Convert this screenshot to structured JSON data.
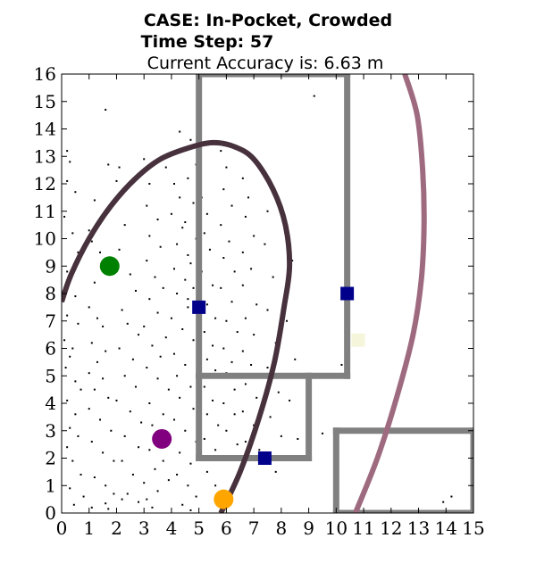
{
  "chart_data": {
    "type": "scatter",
    "title_lines": [
      "CASE: In-Pocket, Crowded",
      "Time Step: 57",
      "Current Accuracy is: 6.63 m"
    ],
    "xlabel": "",
    "ylabel": "",
    "xlim": [
      0,
      15
    ],
    "ylim": [
      0,
      16
    ],
    "xticks": [
      0,
      1,
      2,
      3,
      4,
      5,
      6,
      7,
      8,
      9,
      10,
      11,
      12,
      13,
      14,
      15
    ],
    "yticks": [
      0,
      1,
      2,
      3,
      4,
      5,
      6,
      7,
      8,
      9,
      10,
      11,
      12,
      13,
      14,
      15,
      16
    ],
    "grid": false,
    "legend": "none",
    "walls": [
      {
        "points": [
          [
            5,
            5
          ],
          [
            5,
            16
          ]
        ],
        "color": "#808080"
      },
      {
        "points": [
          [
            5,
            16
          ],
          [
            10.4,
            16
          ]
        ],
        "color": "#808080"
      },
      {
        "points": [
          [
            10.4,
            16
          ],
          [
            10.4,
            5
          ]
        ],
        "color": "#808080"
      },
      {
        "points": [
          [
            10.4,
            5
          ],
          [
            5,
            5
          ]
        ],
        "color": "#808080"
      },
      {
        "points": [
          [
            5,
            5
          ],
          [
            5,
            2
          ]
        ],
        "color": "#808080"
      },
      {
        "points": [
          [
            5,
            2
          ],
          [
            9,
            2
          ]
        ],
        "color": "#808080"
      },
      {
        "points": [
          [
            9,
            2
          ],
          [
            9,
            5
          ]
        ],
        "color": "#808080"
      },
      {
        "points": [
          [
            10,
            0
          ],
          [
            10,
            3
          ]
        ],
        "color": "#808080"
      },
      {
        "points": [
          [
            10,
            3
          ],
          [
            15,
            3
          ]
        ],
        "color": "#808080"
      },
      {
        "points": [
          [
            15,
            3
          ],
          [
            15,
            0
          ]
        ],
        "color": "#808080"
      },
      {
        "points": [
          [
            10,
            0
          ],
          [
            15,
            0
          ]
        ],
        "color": "#808080"
      }
    ],
    "beacons": [
      {
        "x": 5.0,
        "y": 7.5,
        "color": "#00008b"
      },
      {
        "x": 10.4,
        "y": 8.0,
        "color": "#00008b"
      },
      {
        "x": 7.4,
        "y": 2.0,
        "color": "#00008b"
      },
      {
        "x": 10.8,
        "y": 6.3,
        "color": "#f5f5dc"
      }
    ],
    "markers": [
      {
        "name": "green",
        "x": 1.75,
        "y": 9.0,
        "color": "#008000"
      },
      {
        "name": "purple",
        "x": 3.65,
        "y": 2.7,
        "color": "#800080"
      },
      {
        "name": "orange",
        "x": 5.9,
        "y": 0.5,
        "color": "#ffa500"
      }
    ],
    "curves": [
      {
        "name": "dark-ellipse",
        "color": "#47313c",
        "points": [
          [
            5.8,
            0.0
          ],
          [
            6.5,
            1.5
          ],
          [
            7.2,
            3.5
          ],
          [
            7.75,
            5.5
          ],
          [
            8.1,
            7.5
          ],
          [
            8.3,
            9.0
          ],
          [
            8.15,
            10.5
          ],
          [
            7.7,
            11.8
          ],
          [
            7.0,
            12.9
          ],
          [
            6.3,
            13.35
          ],
          [
            5.5,
            13.5
          ],
          [
            4.6,
            13.3
          ],
          [
            3.6,
            12.9
          ],
          [
            2.7,
            12.2
          ],
          [
            1.8,
            11.2
          ],
          [
            1.0,
            10.0
          ],
          [
            0.35,
            8.7
          ],
          [
            0.0,
            7.7
          ]
        ]
      },
      {
        "name": "pink-arc",
        "color": "#9e6a80",
        "points": [
          [
            10.7,
            0.0
          ],
          [
            11.5,
            2.0
          ],
          [
            12.2,
            4.2
          ],
          [
            12.8,
            6.5
          ],
          [
            13.1,
            8.5
          ],
          [
            13.2,
            10.5
          ],
          [
            13.15,
            12.5
          ],
          [
            12.95,
            14.5
          ],
          [
            12.5,
            16.0
          ]
        ]
      }
    ],
    "particles": [
      [
        0.2,
        13.2
      ],
      [
        0.3,
        12.8
      ],
      [
        0.2,
        12.1
      ],
      [
        0.5,
        11.7
      ],
      [
        0.1,
        10.8
      ],
      [
        0.4,
        10.2
      ],
      [
        0.6,
        9.5
      ],
      [
        0.2,
        8.8
      ],
      [
        0.1,
        8.2
      ],
      [
        0.5,
        7.9
      ],
      [
        0.2,
        7.2
      ],
      [
        0.6,
        6.9
      ],
      [
        0.1,
        6.3
      ],
      [
        0.4,
        6.0
      ],
      [
        0.3,
        5.7
      ],
      [
        0.15,
        5.3
      ],
      [
        0.5,
        4.8
      ],
      [
        0.7,
        4.5
      ],
      [
        0.2,
        4.1
      ],
      [
        0.5,
        3.6
      ],
      [
        0.3,
        3.1
      ],
      [
        0.6,
        2.8
      ],
      [
        0.2,
        2.4
      ],
      [
        0.4,
        1.9
      ],
      [
        0.7,
        1.4
      ],
      [
        0.3,
        0.9
      ],
      [
        0.8,
        0.6
      ],
      [
        0.45,
        0.3
      ],
      [
        1.1,
        0.2
      ],
      [
        1.6,
        0.35
      ],
      [
        1.6,
        14.7
      ],
      [
        1.7,
        12.7
      ],
      [
        2.0,
        12.1
      ],
      [
        2.1,
        12.6
      ],
      [
        1.2,
        11.4
      ],
      [
        1.0,
        10.3
      ],
      [
        1.1,
        9.9
      ],
      [
        1.4,
        9.5
      ],
      [
        1.2,
        8.4
      ],
      [
        1.0,
        7.5
      ],
      [
        1.3,
        7.1
      ],
      [
        1.5,
        6.8
      ],
      [
        1.1,
        6.2
      ],
      [
        1.6,
        5.9
      ],
      [
        1.3,
        5.5
      ],
      [
        1.0,
        5.1
      ],
      [
        1.5,
        4.9
      ],
      [
        1.2,
        4.5
      ],
      [
        1.7,
        4.2
      ],
      [
        1.0,
        3.8
      ],
      [
        1.4,
        3.4
      ],
      [
        1.8,
        3.0
      ],
      [
        1.1,
        2.6
      ],
      [
        1.5,
        2.2
      ],
      [
        1.9,
        1.9
      ],
      [
        1.2,
        1.3
      ],
      [
        1.6,
        1.0
      ],
      [
        1.9,
        0.7
      ],
      [
        2.2,
        0.5
      ],
      [
        1.7,
        0.15
      ],
      [
        2.3,
        10.5
      ],
      [
        2.1,
        9.6
      ],
      [
        2.5,
        8.7
      ],
      [
        2.7,
        8.1
      ],
      [
        2.2,
        7.4
      ],
      [
        2.4,
        6.9
      ],
      [
        2.8,
        6.5
      ],
      [
        2.1,
        6.0
      ],
      [
        2.6,
        5.6
      ],
      [
        2.3,
        5.0
      ],
      [
        2.7,
        4.6
      ],
      [
        2.0,
        4.1
      ],
      [
        2.5,
        3.7
      ],
      [
        2.9,
        3.3
      ],
      [
        2.3,
        2.8
      ],
      [
        2.8,
        2.4
      ],
      [
        2.2,
        1.9
      ],
      [
        2.6,
        1.4
      ],
      [
        3.0,
        1.1
      ],
      [
        2.4,
        0.7
      ],
      [
        2.8,
        0.4
      ],
      [
        3.3,
        0.2
      ],
      [
        3.0,
        12.9
      ],
      [
        3.2,
        12.0
      ],
      [
        3.1,
        11.2
      ],
      [
        3.5,
        10.7
      ],
      [
        3.2,
        10.1
      ],
      [
        3.6,
        9.7
      ],
      [
        3.1,
        9.2
      ],
      [
        3.4,
        8.6
      ],
      [
        3.7,
        8.2
      ],
      [
        3.2,
        7.8
      ],
      [
        3.5,
        7.3
      ],
      [
        3.0,
        6.8
      ],
      [
        3.8,
        6.4
      ],
      [
        3.3,
        6.1
      ],
      [
        3.6,
        5.7
      ],
      [
        3.1,
        5.3
      ],
      [
        3.5,
        4.9
      ],
      [
        3.9,
        4.5
      ],
      [
        3.2,
        4.0
      ],
      [
        3.7,
        3.6
      ],
      [
        3.3,
        3.2
      ],
      [
        3.8,
        2.9
      ],
      [
        3.2,
        2.3
      ],
      [
        3.7,
        1.9
      ],
      [
        3.4,
        1.6
      ],
      [
        3.9,
        1.2
      ],
      [
        3.5,
        0.8
      ],
      [
        3.1,
        0.5
      ],
      [
        3.8,
        12.6
      ],
      [
        4.1,
        12.0
      ],
      [
        4.3,
        11.5
      ],
      [
        4.0,
        10.9
      ],
      [
        4.4,
        10.4
      ],
      [
        4.2,
        9.8
      ],
      [
        4.6,
        9.4
      ],
      [
        4.1,
        8.9
      ],
      [
        4.5,
        8.5
      ],
      [
        4.2,
        8.0
      ],
      [
        4.6,
        7.5
      ],
      [
        4.0,
        7.1
      ],
      [
        4.4,
        6.7
      ],
      [
        4.8,
        6.3
      ],
      [
        4.1,
        5.8
      ],
      [
        4.5,
        5.4
      ],
      [
        4.2,
        5.0
      ],
      [
        4.7,
        4.6
      ],
      [
        4.3,
        4.2
      ],
      [
        4.8,
        3.8
      ],
      [
        4.1,
        3.4
      ],
      [
        4.5,
        3.0
      ],
      [
        4.9,
        2.6
      ],
      [
        4.3,
        2.2
      ],
      [
        4.7,
        1.8
      ],
      [
        4.2,
        1.4
      ],
      [
        4.6,
        1.0
      ],
      [
        4.9,
        0.6
      ],
      [
        4.4,
        0.3
      ],
      [
        4.7,
        0.1
      ],
      [
        4.3,
        13.9
      ],
      [
        4.7,
        13.6
      ],
      [
        4.9,
        12.7
      ],
      [
        4.6,
        12.2
      ],
      [
        4.8,
        11.3
      ],
      [
        4.5,
        10.6
      ],
      [
        4.9,
        10.0
      ],
      [
        4.7,
        9.1
      ],
      [
        4.8,
        8.2
      ],
      [
        4.6,
        7.8
      ],
      [
        5.1,
        11.5
      ],
      [
        5.3,
        10.9
      ],
      [
        5.2,
        10.2
      ],
      [
        5.4,
        9.6
      ],
      [
        5.1,
        8.8
      ],
      [
        5.5,
        8.3
      ],
      [
        5.3,
        7.6
      ],
      [
        5.6,
        7.1
      ],
      [
        5.2,
        6.6
      ],
      [
        5.5,
        6.1
      ],
      [
        5.3,
        5.6
      ],
      [
        5.6,
        5.2
      ],
      [
        5.2,
        4.6
      ],
      [
        5.5,
        4.1
      ],
      [
        5.3,
        3.6
      ],
      [
        5.7,
        3.2
      ],
      [
        5.2,
        2.7
      ],
      [
        5.6,
        2.3
      ],
      [
        5.3,
        1.5
      ],
      [
        5.6,
        1.0
      ],
      [
        5.8,
        13.2
      ],
      [
        6.0,
        12.6
      ],
      [
        5.9,
        11.8
      ],
      [
        6.2,
        11.2
      ],
      [
        5.8,
        10.5
      ],
      [
        6.1,
        9.9
      ],
      [
        5.9,
        9.3
      ],
      [
        6.3,
        8.8
      ],
      [
        5.8,
        8.2
      ],
      [
        6.2,
        7.7
      ],
      [
        6.0,
        7.0
      ],
      [
        6.4,
        6.6
      ],
      [
        5.9,
        6.0
      ],
      [
        6.2,
        5.5
      ],
      [
        6.0,
        5.1
      ],
      [
        6.3,
        4.5
      ],
      [
        5.9,
        4.0
      ],
      [
        6.3,
        3.6
      ],
      [
        6.0,
        3.0
      ],
      [
        6.4,
        2.5
      ],
      [
        6.6,
        12.2
      ],
      [
        6.8,
        11.5
      ],
      [
        6.7,
        10.8
      ],
      [
        7.0,
        10.1
      ],
      [
        6.6,
        9.5
      ],
      [
        6.9,
        8.9
      ],
      [
        6.6,
        8.3
      ],
      [
        7.1,
        7.6
      ],
      [
        6.7,
        7.1
      ],
      [
        7.0,
        6.5
      ],
      [
        6.6,
        5.9
      ],
      [
        6.9,
        5.4
      ],
      [
        6.7,
        4.7
      ],
      [
        7.1,
        4.2
      ],
      [
        6.6,
        3.7
      ],
      [
        7.0,
        3.2
      ],
      [
        6.7,
        2.6
      ],
      [
        7.2,
        2.3
      ],
      [
        7.3,
        12.4
      ],
      [
        7.5,
        11.0
      ],
      [
        7.4,
        9.8
      ],
      [
        7.7,
        8.6
      ],
      [
        7.5,
        7.4
      ],
      [
        7.8,
        6.2
      ],
      [
        7.5,
        5.3
      ],
      [
        7.9,
        4.4
      ],
      [
        7.6,
        3.5
      ],
      [
        8.0,
        2.8
      ],
      [
        7.8,
        1.5
      ],
      [
        8.4,
        9.2
      ],
      [
        8.2,
        7.0
      ],
      [
        8.5,
        5.6
      ],
      [
        8.3,
        4.1
      ],
      [
        8.6,
        2.7
      ],
      [
        9.2,
        15.2
      ],
      [
        9.5,
        2.9
      ],
      [
        10.2,
        5.4
      ],
      [
        10.6,
        6.5
      ],
      [
        13.9,
        0.4
      ],
      [
        14.2,
        0.6
      ]
    ]
  }
}
